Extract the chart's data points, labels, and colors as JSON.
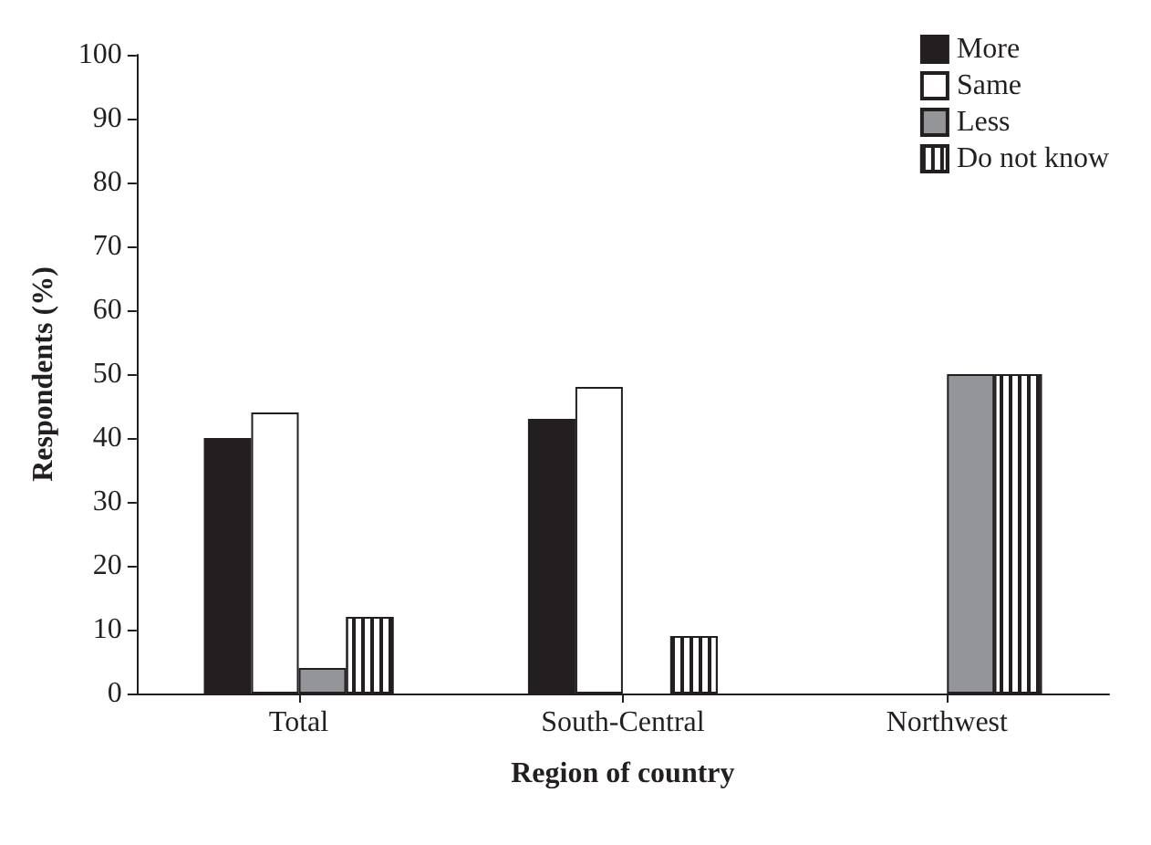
{
  "chart_data": {
    "type": "bar",
    "xlabel": "Region of country",
    "ylabel": "Respondents (%)",
    "categories": [
      "Total",
      "South-Central",
      "Northwest"
    ],
    "series": [
      {
        "name": "More",
        "color": "#231f20",
        "values": [
          40,
          43,
          null
        ]
      },
      {
        "name": "Same",
        "color": "#ffffff",
        "values": [
          44,
          48,
          null
        ]
      },
      {
        "name": "Less",
        "color": "#939598",
        "values": [
          4,
          null,
          50
        ]
      },
      {
        "name": "Do not know",
        "color": "#ffffff",
        "values": [
          12,
          9,
          50
        ]
      }
    ],
    "ylim": [
      0,
      100
    ],
    "yticks": [
      0,
      10,
      20,
      30,
      40,
      50,
      60,
      70,
      80,
      90,
      100
    ],
    "grid": false,
    "legend": "top right"
  }
}
